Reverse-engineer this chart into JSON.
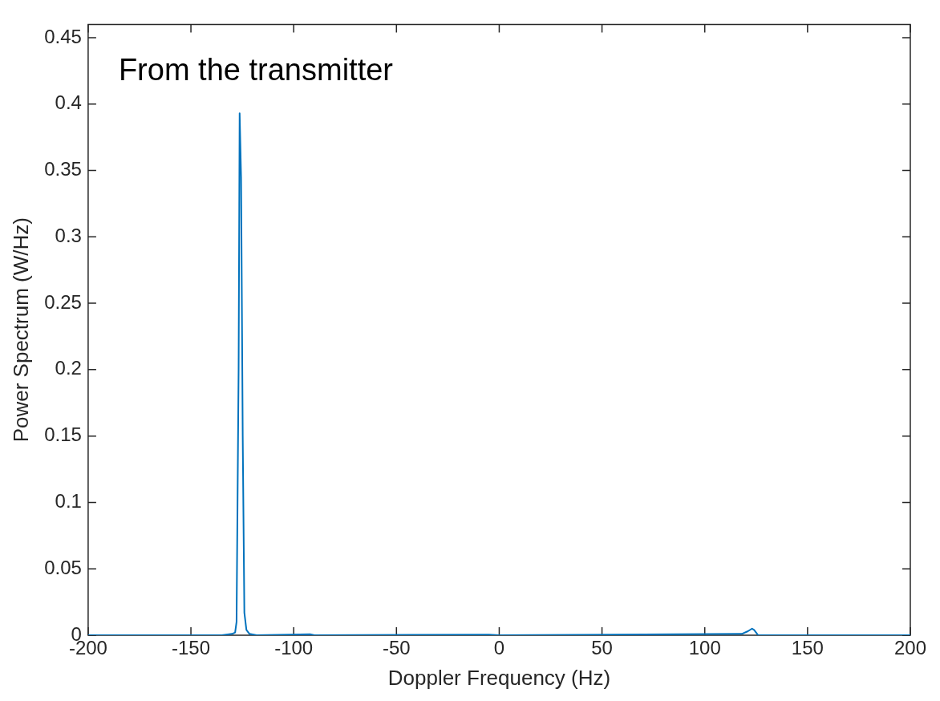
{
  "chart_data": {
    "type": "line",
    "xlabel": "Doppler Frequency (Hz)",
    "ylabel": "Power Spectrum (W/Hz)",
    "annotations": [
      "From the transmitter"
    ],
    "series": [
      {
        "color": "#0072bd",
        "x": [
          -200,
          -135,
          -130,
          -128.5,
          -127.8,
          -126.8,
          -126.3,
          -125.6,
          -124.8,
          -124,
          -123,
          -121.5,
          -118,
          -92,
          -90,
          -5,
          0,
          118,
          121,
          123,
          124,
          126,
          200
        ],
        "values": [
          0,
          0,
          0.001,
          0.002,
          0.01,
          0.2,
          0.393,
          0.345,
          0.15,
          0.017,
          0.004,
          0.001,
          0,
          0.0008,
          0,
          0.0005,
          0,
          0.001,
          0.003,
          0.005,
          0.004,
          0,
          0
        ]
      }
    ],
    "xlim": [
      -200,
      200
    ],
    "xticks": [
      -200,
      -150,
      -100,
      -50,
      0,
      50,
      100,
      150,
      200
    ],
    "ylim": [
      0,
      0.46
    ],
    "yticks": [
      0,
      0.05,
      0.1,
      0.15,
      0.2,
      0.25,
      0.3,
      0.35,
      0.4,
      0.45
    ],
    "grid": false,
    "legend": false,
    "marker": "none",
    "line_style": "solid"
  }
}
